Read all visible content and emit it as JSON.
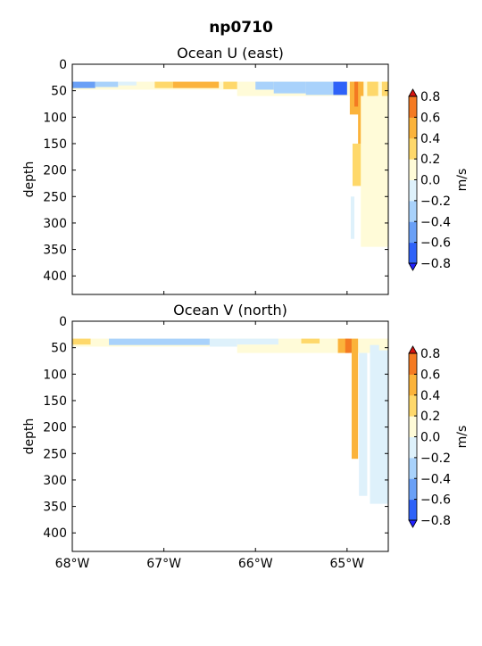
{
  "figure_title": "np0710",
  "chart_data": [
    {
      "type": "contourf",
      "title": "Ocean U (east)",
      "xlabel": "",
      "ylabel": "depth",
      "xlim": [
        -68.0,
        -64.55
      ],
      "ylim": [
        435,
        0
      ],
      "yticks": [
        0,
        50,
        100,
        150,
        200,
        250,
        300,
        350,
        400
      ],
      "xticks": [
        -68,
        -67,
        -66,
        -65
      ],
      "xtick_labels": [],
      "colorbar": {
        "label": "m/s",
        "levels": [
          -0.8,
          -0.6,
          -0.4,
          -0.2,
          0.0,
          0.2,
          0.4,
          0.6,
          0.8
        ],
        "tick_labels": [
          "−0.8",
          "−0.6",
          "−0.4",
          "−0.2",
          "0.0",
          "0.2",
          "0.4",
          "0.6",
          "0.8"
        ],
        "extend": "both"
      },
      "regions": [
        {
          "x": [
            -68.0,
            -66.2
          ],
          "y": [
            33,
            48
          ],
          "value": 0.1
        },
        {
          "x": [
            -66.2,
            -64.55
          ],
          "y": [
            33,
            60
          ],
          "value": 0.1
        },
        {
          "x": [
            -68.0,
            -67.75
          ],
          "y": [
            33,
            45
          ],
          "value": -0.5
        },
        {
          "x": [
            -67.75,
            -67.5
          ],
          "y": [
            33,
            43
          ],
          "value": -0.3
        },
        {
          "x": [
            -67.5,
            -67.3
          ],
          "y": [
            33,
            40
          ],
          "value": -0.1
        },
        {
          "x": [
            -67.1,
            -66.9
          ],
          "y": [
            33,
            45
          ],
          "value": 0.3
        },
        {
          "x": [
            -66.9,
            -66.4
          ],
          "y": [
            33,
            45
          ],
          "value": 0.5
        },
        {
          "x": [
            -66.35,
            -66.2
          ],
          "y": [
            33,
            47
          ],
          "value": 0.3
        },
        {
          "x": [
            -66.0,
            -65.8
          ],
          "y": [
            33,
            48
          ],
          "value": -0.3
        },
        {
          "x": [
            -65.8,
            -65.45
          ],
          "y": [
            33,
            55
          ],
          "value": -0.3
        },
        {
          "x": [
            -65.45,
            -65.15
          ],
          "y": [
            33,
            58
          ],
          "value": -0.3
        },
        {
          "x": [
            -65.15,
            -65.0
          ],
          "y": [
            33,
            58
          ],
          "value": -0.7
        },
        {
          "x": [
            -64.97,
            -64.85
          ],
          "y": [
            33,
            95
          ],
          "value": 0.5
        },
        {
          "x": [
            -64.92,
            -64.86
          ],
          "y": [
            33,
            80
          ],
          "value": 0.7
        },
        {
          "x": [
            -64.88,
            -64.82
          ],
          "y": [
            33,
            190
          ],
          "value": 0.5
        },
        {
          "x": [
            -64.94,
            -64.84
          ],
          "y": [
            150,
            230
          ],
          "value": 0.3
        },
        {
          "x": [
            -64.78,
            -64.66
          ],
          "y": [
            33,
            60
          ],
          "value": 0.3
        },
        {
          "x": [
            -64.78,
            -64.7
          ],
          "y": [
            60,
            130
          ],
          "value": 0.5
        },
        {
          "x": [
            -64.62,
            -64.55
          ],
          "y": [
            33,
            80
          ],
          "value": 0.3
        },
        {
          "x": [
            -64.96,
            -64.92
          ],
          "y": [
            250,
            330
          ],
          "value": -0.1
        },
        {
          "x": [
            -64.85,
            -64.55
          ],
          "y": [
            60,
            345
          ],
          "value": 0.1
        }
      ]
    },
    {
      "type": "contourf",
      "title": "Ocean V (north)",
      "xlabel": "",
      "ylabel": "depth",
      "xlim": [
        -68.0,
        -64.55
      ],
      "ylim": [
        435,
        0
      ],
      "yticks": [
        0,
        50,
        100,
        150,
        200,
        250,
        300,
        350,
        400
      ],
      "xticks": [
        -68,
        -67,
        -66,
        -65
      ],
      "xtick_labels": [
        "68°W",
        "67°W",
        "66°W",
        "65°W"
      ],
      "colorbar": {
        "label": "m/s",
        "levels": [
          -0.8,
          -0.6,
          -0.4,
          -0.2,
          0.0,
          0.2,
          0.4,
          0.6,
          0.8
        ],
        "tick_labels": [
          "−0.8",
          "−0.6",
          "−0.4",
          "−0.2",
          "0.0",
          "0.2",
          "0.4",
          "0.6",
          "0.8"
        ],
        "extend": "both"
      },
      "regions": [
        {
          "x": [
            -68.0,
            -66.2
          ],
          "y": [
            33,
            48
          ],
          "value": 0.1
        },
        {
          "x": [
            -66.2,
            -64.55
          ],
          "y": [
            33,
            60
          ],
          "value": 0.1
        },
        {
          "x": [
            -68.0,
            -67.8
          ],
          "y": [
            33,
            44
          ],
          "value": 0.3
        },
        {
          "x": [
            -67.6,
            -66.5
          ],
          "y": [
            33,
            45
          ],
          "value": -0.3
        },
        {
          "x": [
            -66.5,
            -66.2
          ],
          "y": [
            33,
            48
          ],
          "value": -0.1
        },
        {
          "x": [
            -66.2,
            -65.75
          ],
          "y": [
            33,
            44
          ],
          "value": -0.1
        },
        {
          "x": [
            -65.5,
            -65.3
          ],
          "y": [
            33,
            42
          ],
          "value": 0.3
        },
        {
          "x": [
            -65.1,
            -64.98
          ],
          "y": [
            33,
            60
          ],
          "value": 0.5
        },
        {
          "x": [
            -65.02,
            -64.95
          ],
          "y": [
            33,
            60
          ],
          "value": 0.7
        },
        {
          "x": [
            -64.95,
            -64.88
          ],
          "y": [
            33,
            260
          ],
          "value": 0.5
        },
        {
          "x": [
            -64.87,
            -64.78
          ],
          "y": [
            60,
            330
          ],
          "value": -0.1
        },
        {
          "x": [
            -64.75,
            -64.55
          ],
          "y": [
            45,
            345
          ],
          "value": -0.1
        },
        {
          "x": [
            -64.65,
            -64.55
          ],
          "y": [
            33,
            55
          ],
          "value": 0.1
        }
      ]
    }
  ]
}
